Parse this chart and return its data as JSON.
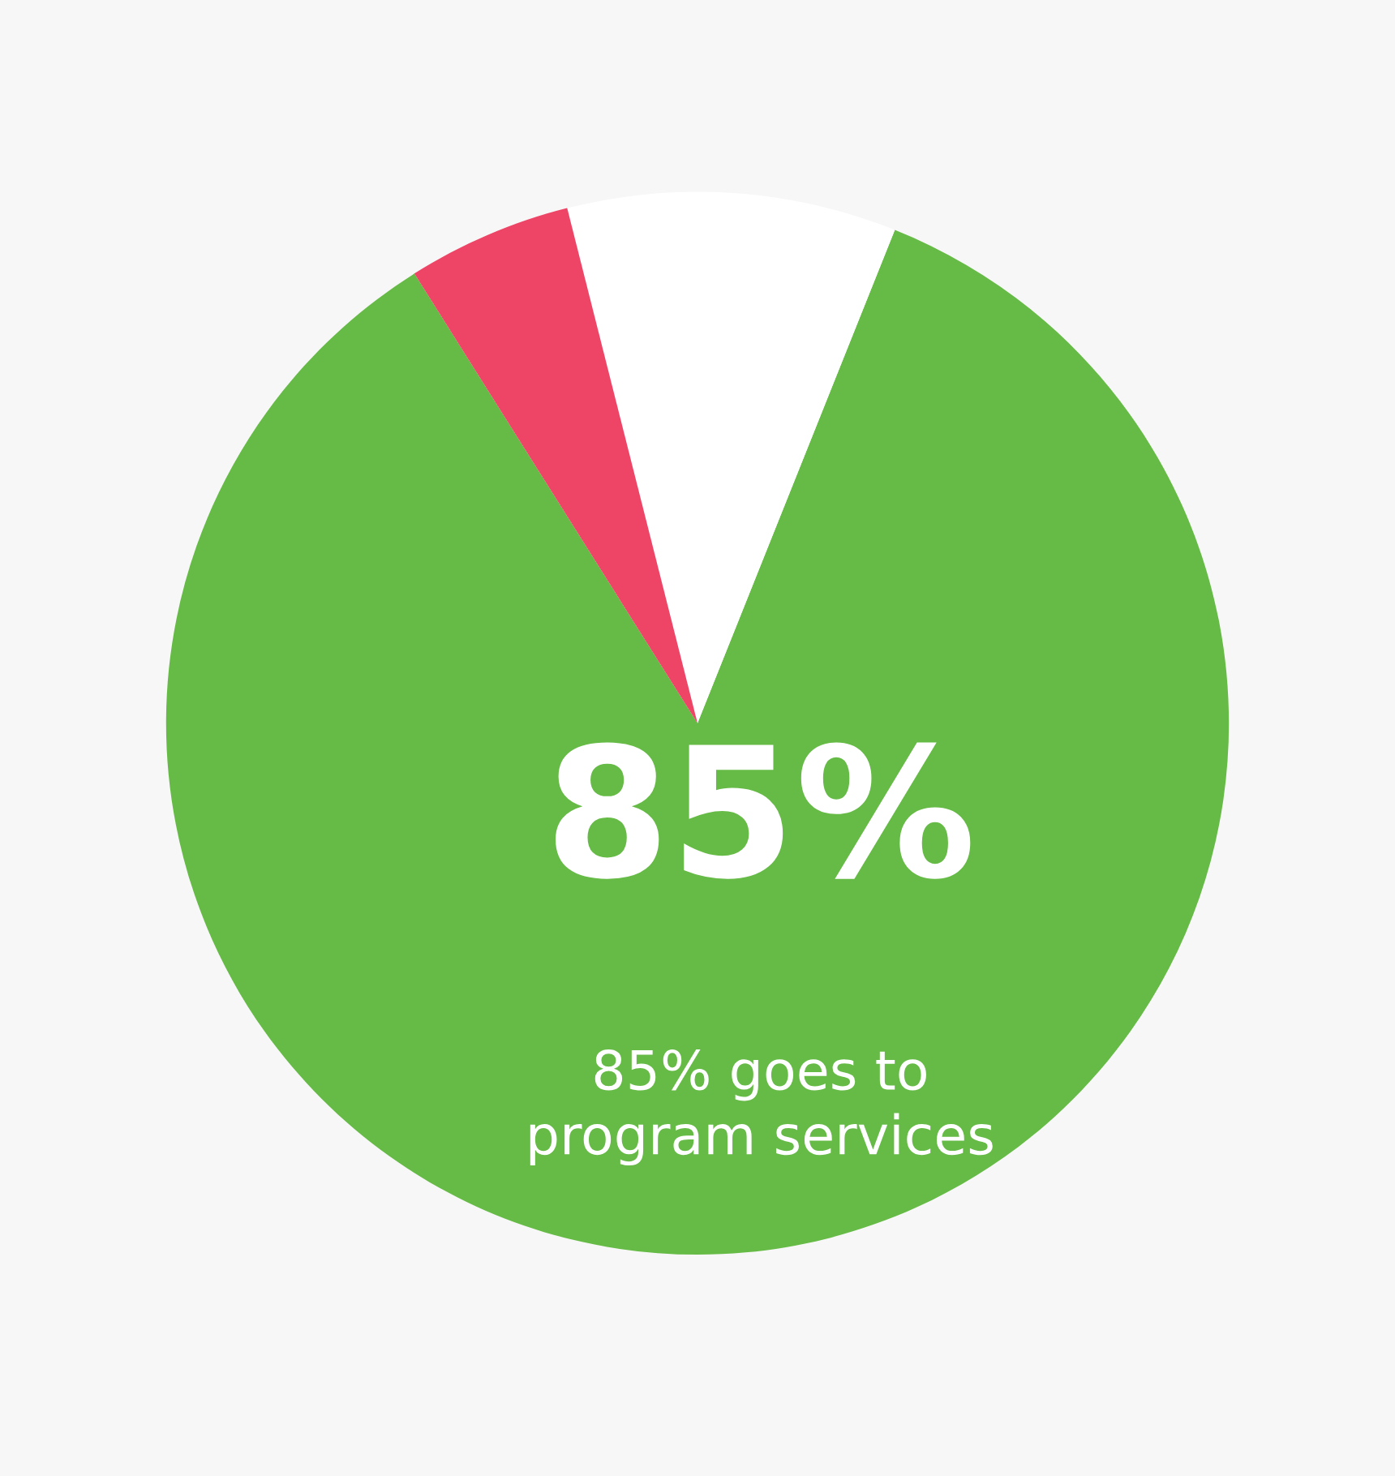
{
  "chart_data": {
    "type": "pie",
    "categories": [
      null,
      null,
      null
    ],
    "values": [
      85,
      10,
      5
    ],
    "colors": [
      "#66bb46",
      "#ffffff",
      "#ee4466"
    ],
    "annotations": [
      "85%",
      "85% goes to\nprogram services"
    ]
  }
}
